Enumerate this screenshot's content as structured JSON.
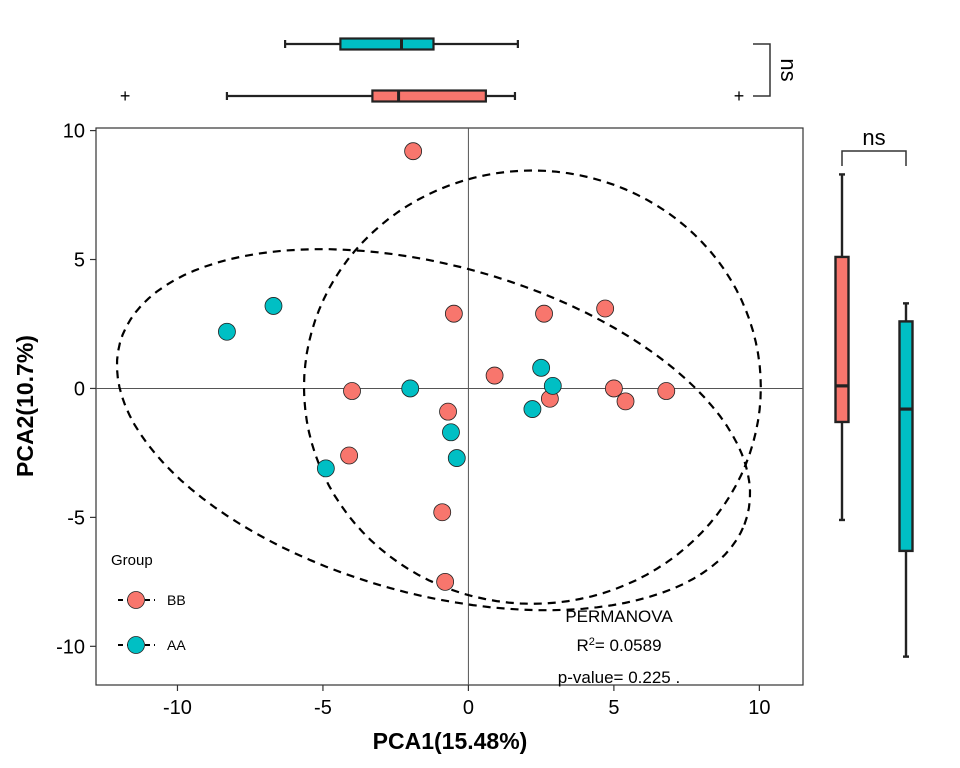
{
  "chart_data": {
    "type": "scatter",
    "title": "",
    "xlabel": "PCA1(15.48%)",
    "ylabel": "PCA2(10.7%)",
    "xlim": [
      -12.8,
      11.5
    ],
    "ylim": [
      -11.5,
      10.1
    ],
    "x_ticks": [
      -10,
      -5,
      0,
      5,
      10
    ],
    "y_ticks": [
      -10,
      -5,
      0,
      5,
      10
    ],
    "x_tick_labels": [
      "-10",
      "-5",
      "0",
      "5",
      "10"
    ],
    "y_tick_labels": [
      "-10",
      "-5",
      "0",
      "5",
      "10"
    ],
    "grid": false,
    "reference_lines": {
      "x": 0,
      "y": 0
    },
    "legend": {
      "title": "Group",
      "placement": "bottom-left",
      "entries": [
        "BB",
        "AA"
      ]
    },
    "series": [
      {
        "name": "BB",
        "color": "#F8766D",
        "points": [
          {
            "x": -1.9,
            "y": 9.2
          },
          {
            "x": -0.5,
            "y": 2.9
          },
          {
            "x": 2.6,
            "y": 2.9
          },
          {
            "x": 4.7,
            "y": 3.1
          },
          {
            "x": 0.9,
            "y": 0.5
          },
          {
            "x": 5.0,
            "y": 0.0
          },
          {
            "x": 6.8,
            "y": -0.1
          },
          {
            "x": 5.4,
            "y": -0.5
          },
          {
            "x": 2.8,
            "y": -0.4
          },
          {
            "x": -4.0,
            "y": -0.1
          },
          {
            "x": -0.7,
            "y": -0.9
          },
          {
            "x": -4.1,
            "y": -2.6
          },
          {
            "x": -0.9,
            "y": -4.8
          },
          {
            "x": -0.8,
            "y": -7.5
          }
        ]
      },
      {
        "name": "AA",
        "color": "#00BFC4",
        "points": [
          {
            "x": -8.3,
            "y": 2.2
          },
          {
            "x": -6.7,
            "y": 3.2
          },
          {
            "x": -2.0,
            "y": -0.0
          },
          {
            "x": 2.5,
            "y": 0.8
          },
          {
            "x": 2.9,
            "y": 0.1
          },
          {
            "x": 2.2,
            "y": -0.8
          },
          {
            "x": -0.6,
            "y": -1.7
          },
          {
            "x": -0.4,
            "y": -2.7
          },
          {
            "x": -4.9,
            "y": -3.1
          }
        ]
      }
    ],
    "ellipses": [
      {
        "group": "BB",
        "cx": -1.2,
        "cy": -1.6,
        "rx": 11.3,
        "ry": 6.3,
        "angle_deg": -19
      },
      {
        "group": "AA",
        "cx": 2.2,
        "cy": 0.05,
        "rx": 7.85,
        "ry": 8.4,
        "angle_deg": 0
      }
    ],
    "marginal_boxplots": {
      "top": {
        "significance": "ns",
        "boxes": [
          {
            "group": "AA",
            "whisker_min": -6.3,
            "q1": -4.4,
            "median": -2.3,
            "q3": -1.2,
            "whisker_max": 1.7,
            "outliers": []
          },
          {
            "group": "BB",
            "whisker_min": -8.3,
            "q1": -3.3,
            "median": -2.4,
            "q3": 0.6,
            "whisker_max": 1.6,
            "outliers": [
              -11.8,
              9.3
            ]
          }
        ]
      },
      "right": {
        "significance": "ns",
        "boxes": [
          {
            "group": "BB",
            "whisker_min": -5.1,
            "q1": -1.3,
            "median": 0.1,
            "q3": 5.1,
            "whisker_max": 8.3,
            "outliers": []
          },
          {
            "group": "AA",
            "whisker_min": -10.4,
            "q1": -6.3,
            "median": -0.8,
            "q3": 2.6,
            "whisker_max": 3.3,
            "outliers": []
          }
        ]
      }
    },
    "annotation": {
      "line1": "PERMANOVA",
      "line2_base": "R",
      "line2_sup": "2",
      "line2_rest": "= 0.0589",
      "line3": "p-value= 0.225 ."
    }
  }
}
